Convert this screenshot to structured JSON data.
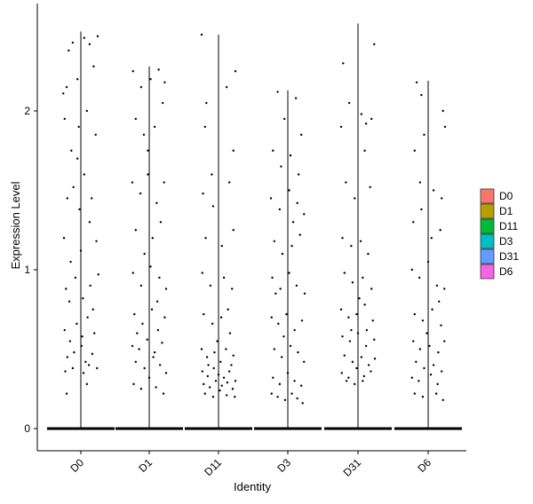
{
  "chart_data": {
    "type": "scatter",
    "subtype": "violin-jitter",
    "title": "",
    "xlabel": "Identity",
    "ylabel": "Expression Level",
    "categories": [
      "D0",
      "D1",
      "D11",
      "D3",
      "D31",
      "D6"
    ],
    "ylim": [
      -0.13,
      2.6
    ],
    "yticks": [
      0,
      1,
      2
    ],
    "grid": false,
    "legend": {
      "position": "right",
      "items": [
        {
          "label": "D0",
          "color": "#F8766D"
        },
        {
          "label": "D1",
          "color": "#B79F00"
        },
        {
          "label": "D11",
          "color": "#00BA38"
        },
        {
          "label": "D3",
          "color": "#00BFC4"
        },
        {
          "label": "D31",
          "color": "#619CFF"
        },
        {
          "label": "D6",
          "color": "#F564E3"
        }
      ]
    },
    "violin_max": [
      2.5,
      2.28,
      2.48,
      2.13,
      2.55,
      2.19
    ],
    "groups": [
      {
        "name": "D0",
        "y_top": 2.5,
        "points": [
          [
            -0.26,
            2.11
          ],
          [
            -0.21,
            2.15
          ],
          [
            -0.18,
            2.38
          ],
          [
            -0.12,
            2.43
          ],
          [
            -0.05,
            2.2
          ],
          [
            0.05,
            2.46
          ],
          [
            0.13,
            2.42
          ],
          [
            0.25,
            2.47
          ],
          [
            0.19,
            2.28
          ],
          [
            -0.24,
            1.95
          ],
          [
            -0.14,
            1.75
          ],
          [
            -0.03,
            1.9
          ],
          [
            0.09,
            2.0
          ],
          [
            0.22,
            1.85
          ],
          [
            -0.2,
            1.45
          ],
          [
            -0.11,
            1.52
          ],
          [
            -0.02,
            1.38
          ],
          [
            0.05,
            1.6
          ],
          [
            0.16,
            1.45
          ],
          [
            -0.25,
            1.2
          ],
          [
            -0.15,
            1.05
          ],
          [
            0.0,
            1.12
          ],
          [
            0.13,
            1.3
          ],
          [
            0.23,
            1.18
          ],
          [
            -0.22,
            0.88
          ],
          [
            -0.08,
            0.95
          ],
          [
            0.03,
            0.82
          ],
          [
            0.14,
            0.9
          ],
          [
            0.26,
            0.97
          ],
          [
            -0.24,
            0.62
          ],
          [
            -0.16,
            0.55
          ],
          [
            -0.06,
            0.66
          ],
          [
            0.02,
            0.58
          ],
          [
            0.1,
            0.7
          ],
          [
            0.2,
            0.6
          ],
          [
            -0.2,
            0.45
          ],
          [
            -0.1,
            0.48
          ],
          [
            0.01,
            0.52
          ],
          [
            0.07,
            0.42
          ],
          [
            0.17,
            0.47
          ],
          [
            -0.23,
            0.36
          ],
          [
            -0.12,
            0.38
          ],
          [
            0.04,
            0.35
          ],
          [
            0.12,
            0.4
          ],
          [
            0.24,
            0.38
          ],
          [
            -0.21,
            0.22
          ],
          [
            0.09,
            0.28
          ],
          [
            -0.05,
            1.7
          ],
          [
            0.18,
            0.75
          ],
          [
            -0.17,
            0.8
          ]
        ]
      },
      {
        "name": "D1",
        "y_top": 2.28,
        "points": [
          [
            -0.24,
            2.25
          ],
          [
            -0.12,
            2.15
          ],
          [
            0.02,
            2.2
          ],
          [
            0.14,
            2.26
          ],
          [
            0.23,
            2.18
          ],
          [
            -0.2,
            1.95
          ],
          [
            -0.08,
            1.85
          ],
          [
            0.08,
            1.9
          ],
          [
            0.2,
            2.05
          ],
          [
            -0.25,
            1.55
          ],
          [
            -0.13,
            1.48
          ],
          [
            -0.02,
            1.6
          ],
          [
            0.11,
            1.42
          ],
          [
            0.22,
            1.55
          ],
          [
            -0.2,
            1.25
          ],
          [
            -0.07,
            1.1
          ],
          [
            0.05,
            1.2
          ],
          [
            0.17,
            1.3
          ],
          [
            -0.24,
            0.98
          ],
          [
            -0.12,
            0.9
          ],
          [
            0.02,
            1.02
          ],
          [
            0.15,
            0.95
          ],
          [
            0.25,
            0.88
          ],
          [
            -0.22,
            0.72
          ],
          [
            -0.1,
            0.66
          ],
          [
            0.04,
            0.75
          ],
          [
            0.13,
            0.62
          ],
          [
            0.23,
            0.7
          ],
          [
            -0.25,
            0.52
          ],
          [
            -0.15,
            0.5
          ],
          [
            -0.03,
            0.56
          ],
          [
            0.08,
            0.48
          ],
          [
            0.19,
            0.54
          ],
          [
            -0.2,
            0.42
          ],
          [
            -0.07,
            0.38
          ],
          [
            0.06,
            0.45
          ],
          [
            0.16,
            0.4
          ],
          [
            0.25,
            0.35
          ],
          [
            -0.23,
            0.28
          ],
          [
            -0.12,
            0.25
          ],
          [
            0.0,
            0.32
          ],
          [
            0.1,
            0.26
          ],
          [
            0.21,
            0.22
          ],
          [
            -0.02,
            1.75
          ],
          [
            0.12,
            0.8
          ],
          [
            -0.18,
            0.6
          ]
        ]
      },
      {
        "name": "D11",
        "y_top": 2.48,
        "points": [
          [
            -0.25,
            2.48
          ],
          [
            -0.18,
            2.05
          ],
          [
            0.25,
            2.25
          ],
          [
            0.12,
            2.15
          ],
          [
            -0.2,
            1.9
          ],
          [
            0.22,
            1.75
          ],
          [
            -0.23,
            1.48
          ],
          [
            -0.08,
            1.4
          ],
          [
            0.16,
            1.55
          ],
          [
            -0.19,
            1.2
          ],
          [
            0.05,
            1.15
          ],
          [
            0.22,
            1.25
          ],
          [
            -0.24,
            0.98
          ],
          [
            -0.12,
            0.9
          ],
          [
            0.08,
            0.95
          ],
          [
            0.2,
            0.88
          ],
          [
            -0.22,
            0.72
          ],
          [
            -0.09,
            0.66
          ],
          [
            0.04,
            0.7
          ],
          [
            0.17,
            0.6
          ],
          [
            -0.25,
            0.5
          ],
          [
            -0.17,
            0.45
          ],
          [
            -0.06,
            0.48
          ],
          [
            0.03,
            0.42
          ],
          [
            0.11,
            0.5
          ],
          [
            0.22,
            0.46
          ],
          [
            -0.24,
            0.36
          ],
          [
            -0.16,
            0.33
          ],
          [
            -0.07,
            0.38
          ],
          [
            0.0,
            0.34
          ],
          [
            0.08,
            0.32
          ],
          [
            0.16,
            0.36
          ],
          [
            0.25,
            0.3
          ],
          [
            -0.22,
            0.28
          ],
          [
            -0.13,
            0.26
          ],
          [
            -0.04,
            0.3
          ],
          [
            0.05,
            0.27
          ],
          [
            0.13,
            0.29
          ],
          [
            0.21,
            0.25
          ],
          [
            -0.2,
            0.22
          ],
          [
            -0.08,
            0.2
          ],
          [
            0.02,
            0.24
          ],
          [
            0.12,
            0.21
          ],
          [
            0.24,
            0.2
          ],
          [
            -0.15,
            0.4
          ],
          [
            0.19,
            0.4
          ],
          [
            -0.02,
            0.55
          ],
          [
            0.14,
            0.75
          ],
          [
            -0.1,
            1.6
          ]
        ]
      },
      {
        "name": "D3",
        "y_top": 2.13,
        "points": [
          [
            -0.15,
            2.12
          ],
          [
            -0.05,
            1.95
          ],
          [
            0.12,
            2.08
          ],
          [
            0.2,
            1.85
          ],
          [
            -0.22,
            1.75
          ],
          [
            -0.1,
            1.65
          ],
          [
            0.04,
            1.72
          ],
          [
            0.16,
            1.6
          ],
          [
            -0.25,
            1.45
          ],
          [
            -0.12,
            1.38
          ],
          [
            0.02,
            1.5
          ],
          [
            0.14,
            1.42
          ],
          [
            0.24,
            1.35
          ],
          [
            -0.2,
            1.18
          ],
          [
            -0.08,
            1.1
          ],
          [
            0.06,
            1.15
          ],
          [
            0.18,
            1.22
          ],
          [
            -0.23,
            0.95
          ],
          [
            -0.11,
            0.88
          ],
          [
            0.02,
            0.98
          ],
          [
            0.13,
            0.9
          ],
          [
            0.25,
            0.85
          ],
          [
            -0.24,
            0.7
          ],
          [
            -0.14,
            0.66
          ],
          [
            -0.02,
            0.72
          ],
          [
            0.1,
            0.62
          ],
          [
            0.21,
            0.68
          ],
          [
            -0.2,
            0.5
          ],
          [
            -0.09,
            0.45
          ],
          [
            0.04,
            0.52
          ],
          [
            0.15,
            0.48
          ],
          [
            0.24,
            0.42
          ],
          [
            -0.22,
            0.32
          ],
          [
            -0.12,
            0.28
          ],
          [
            0.0,
            0.35
          ],
          [
            0.1,
            0.3
          ],
          [
            0.2,
            0.27
          ],
          [
            -0.24,
            0.22
          ],
          [
            -0.15,
            0.2
          ],
          [
            -0.04,
            0.18
          ],
          [
            0.06,
            0.22
          ],
          [
            0.14,
            0.19
          ],
          [
            0.22,
            0.16
          ],
          [
            -0.18,
            0.85
          ],
          [
            0.08,
            1.3
          ],
          [
            -0.06,
            0.58
          ]
        ]
      },
      {
        "name": "D31",
        "y_top": 2.55,
        "points": [
          [
            -0.22,
            2.3
          ],
          [
            0.24,
            2.42
          ],
          [
            0.05,
            1.98
          ],
          [
            -0.13,
            2.05
          ],
          [
            0.12,
            1.92
          ],
          [
            0.2,
            1.95
          ],
          [
            -0.25,
            1.9
          ],
          [
            0.1,
            1.75
          ],
          [
            -0.18,
            1.55
          ],
          [
            0.18,
            1.52
          ],
          [
            -0.05,
            1.45
          ],
          [
            -0.23,
            1.2
          ],
          [
            -0.1,
            1.15
          ],
          [
            0.04,
            1.18
          ],
          [
            0.15,
            1.1
          ],
          [
            -0.2,
            0.98
          ],
          [
            -0.08,
            0.92
          ],
          [
            0.07,
            0.95
          ],
          [
            0.2,
            0.88
          ],
          [
            -0.25,
            0.75
          ],
          [
            -0.14,
            0.7
          ],
          [
            -0.02,
            0.72
          ],
          [
            0.1,
            0.78
          ],
          [
            0.22,
            0.68
          ],
          [
            -0.23,
            0.58
          ],
          [
            -0.12,
            0.55
          ],
          [
            0.0,
            0.6
          ],
          [
            0.12,
            0.52
          ],
          [
            0.24,
            0.56
          ],
          [
            -0.2,
            0.46
          ],
          [
            -0.08,
            0.42
          ],
          [
            0.05,
            0.45
          ],
          [
            0.16,
            0.4
          ],
          [
            0.25,
            0.44
          ],
          [
            -0.24,
            0.35
          ],
          [
            -0.14,
            0.32
          ],
          [
            -0.02,
            0.38
          ],
          [
            0.09,
            0.33
          ],
          [
            0.19,
            0.36
          ],
          [
            -0.17,
            0.3
          ],
          [
            -0.05,
            0.28
          ],
          [
            0.07,
            0.3
          ],
          [
            -0.1,
            0.62
          ],
          [
            0.13,
            0.62
          ],
          [
            0.02,
            0.82
          ]
        ]
      },
      {
        "name": "D6",
        "y_top": 2.19,
        "points": [
          [
            -0.17,
            2.18
          ],
          [
            -0.1,
            2.1
          ],
          [
            0.22,
            2.0
          ],
          [
            -0.2,
            1.75
          ],
          [
            -0.06,
            1.85
          ],
          [
            0.25,
            1.9
          ],
          [
            -0.12,
            1.55
          ],
          [
            0.2,
            1.45
          ],
          [
            0.08,
            1.5
          ],
          [
            -0.22,
            1.3
          ],
          [
            -0.1,
            1.38
          ],
          [
            0.05,
            1.2
          ],
          [
            0.18,
            1.25
          ],
          [
            -0.24,
            1.0
          ],
          [
            -0.13,
            0.95
          ],
          [
            0.0,
            1.05
          ],
          [
            0.13,
            0.9
          ],
          [
            0.24,
            0.88
          ],
          [
            -0.2,
            0.72
          ],
          [
            -0.08,
            0.68
          ],
          [
            0.06,
            0.75
          ],
          [
            0.19,
            0.65
          ],
          [
            -0.22,
            0.55
          ],
          [
            -0.12,
            0.5
          ],
          [
            0.02,
            0.52
          ],
          [
            0.15,
            0.48
          ],
          [
            0.24,
            0.55
          ],
          [
            -0.18,
            0.42
          ],
          [
            -0.06,
            0.38
          ],
          [
            0.08,
            0.4
          ],
          [
            0.2,
            0.36
          ],
          [
            -0.24,
            0.32
          ],
          [
            -0.14,
            0.3
          ],
          [
            0.04,
            0.34
          ],
          [
            0.14,
            0.28
          ],
          [
            -0.2,
            0.22
          ],
          [
            -0.08,
            0.2
          ],
          [
            0.12,
            0.22
          ],
          [
            0.22,
            0.18
          ],
          [
            0.16,
            0.8
          ],
          [
            -0.02,
            0.6
          ]
        ]
      }
    ]
  }
}
